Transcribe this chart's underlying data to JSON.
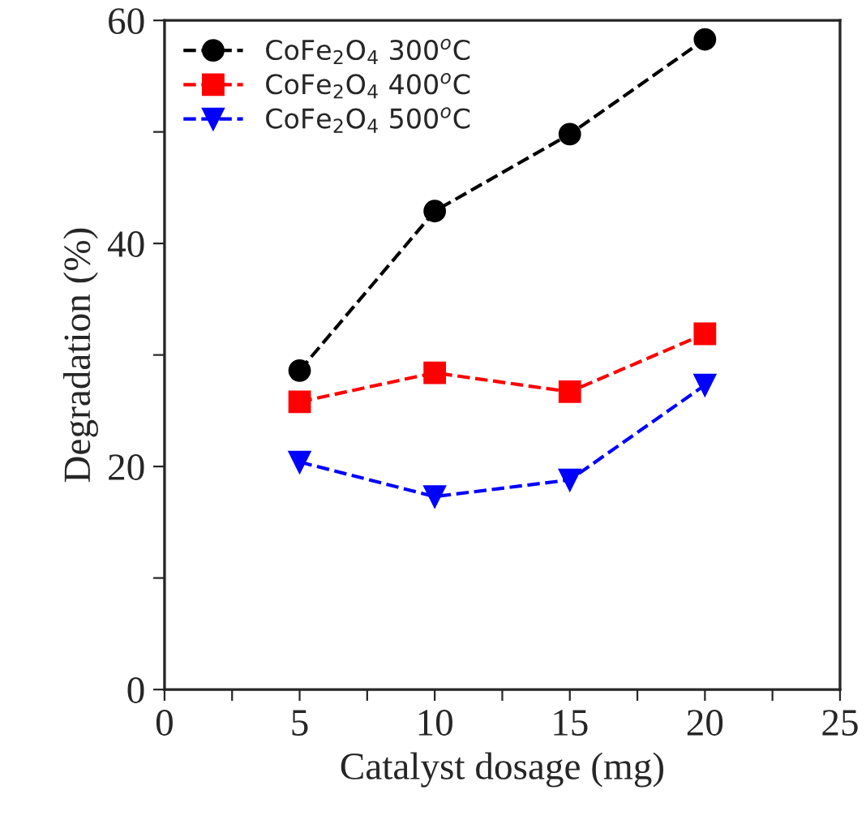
{
  "chart_data": {
    "type": "line",
    "xlabel": "Catalyst dosage (mg)",
    "ylabel": "Degradation (%)",
    "x": [
      5,
      10,
      15,
      20
    ],
    "series": [
      {
        "name": "CoFe$_{2}$O$_{4}$ 300$^{o}$C",
        "color": "#000000",
        "marker": "circle",
        "values": [
          28.6,
          42.9,
          49.8,
          58.3
        ]
      },
      {
        "name": "CoFe$_{2}$O$_{4}$ 400$^{o}$C",
        "color": "#ff0000",
        "marker": "square",
        "values": [
          25.8,
          28.4,
          26.7,
          31.9
        ]
      },
      {
        "name": "CoFe$_{2}$O$_{4}$ 500$^{o}$C",
        "color": "#0000ff",
        "marker": "triangle",
        "values": [
          20.4,
          17.3,
          18.8,
          27.3
        ]
      }
    ],
    "line_style": "dashed",
    "grid": false,
    "legend": "top left",
    "xlim": [
      0,
      25
    ],
    "xticks": [
      0,
      {
        "value": 2.5,
        "label": null
      },
      5,
      {
        "value": 7.5,
        "label": null
      },
      10,
      {
        "value": 12.5,
        "label": null
      },
      15,
      {
        "value": 17.5,
        "label": null
      },
      20,
      {
        "value": 22.5,
        "label": null
      },
      25
    ],
    "ylim": [
      0,
      60
    ],
    "yticks": [
      0,
      {
        "value": 10,
        "label": null
      },
      20,
      {
        "value": 30,
        "label": null
      },
      40,
      {
        "value": 50,
        "label": null
      },
      60
    ]
  }
}
